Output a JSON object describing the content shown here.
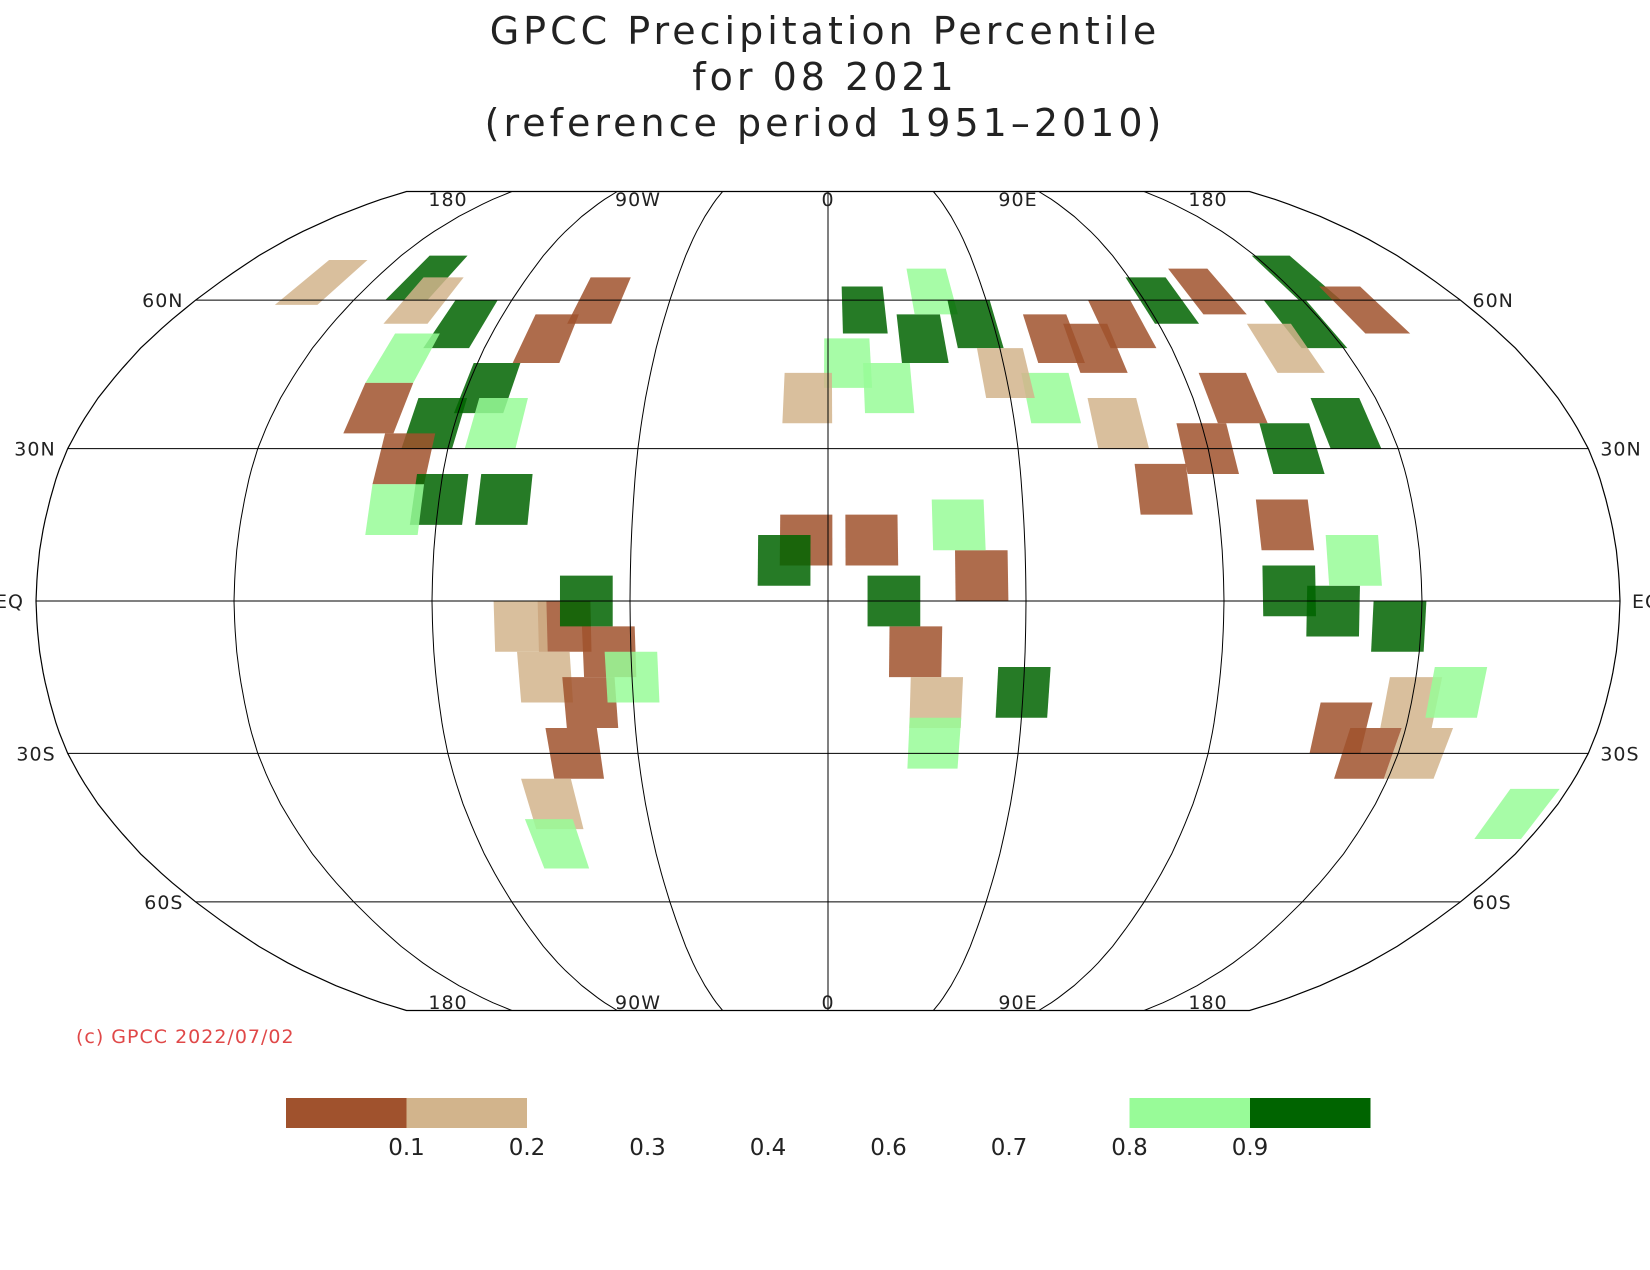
{
  "title": {
    "line1": "GPCC Precipitation Percentile",
    "line2": "for 08 2021",
    "line3": "(reference period 1951–2010)"
  },
  "copyright": "(c) GPCC 2022/07/02",
  "map": {
    "projection": "robinson",
    "central_longitude": 0,
    "longitude_labels": [
      {
        "lon": -180,
        "text": "180"
      },
      {
        "lon": -90,
        "text": "90W"
      },
      {
        "lon": 0,
        "text": "0"
      },
      {
        "lon": 90,
        "text": "90E"
      },
      {
        "lon": 180,
        "text": "180"
      }
    ],
    "latitude_labels": [
      {
        "lat": 60,
        "text": "60N"
      },
      {
        "lat": 30,
        "text": "30N"
      },
      {
        "lat": 0,
        "text": "EQ"
      },
      {
        "lat": -30,
        "text": "30S"
      },
      {
        "lat": -60,
        "text": "60S"
      }
    ],
    "categories": [
      {
        "range": "<0.1",
        "color": "#a0522d"
      },
      {
        "range": "0.1-0.2",
        "color": "#d2b48c"
      },
      {
        "range": "0.8-0.9",
        "color": "#98fb98"
      },
      {
        "range": ">0.9",
        "color": "#006400"
      }
    ],
    "regions": [
      {
        "lon": -100,
        "lat": 55,
        "cat": 3
      },
      {
        "lon": -120,
        "lat": 65,
        "cat": 3
      },
      {
        "lon": -85,
        "lat": 42,
        "cat": 3
      },
      {
        "lon": -110,
        "lat": 48,
        "cat": 2
      },
      {
        "lon": -95,
        "lat": 35,
        "cat": 3
      },
      {
        "lon": -80,
        "lat": 35,
        "cat": 2
      },
      {
        "lon": -75,
        "lat": 52,
        "cat": 0
      },
      {
        "lon": -65,
        "lat": 60,
        "cat": 0
      },
      {
        "lon": -110,
        "lat": 38,
        "cat": 0
      },
      {
        "lon": -100,
        "lat": 28,
        "cat": 0
      },
      {
        "lon": -115,
        "lat": 60,
        "cat": 1
      },
      {
        "lon": -150,
        "lat": 64,
        "cat": 1
      },
      {
        "lon": -90,
        "lat": 20,
        "cat": 3
      },
      {
        "lon": -75,
        "lat": 20,
        "cat": 3
      },
      {
        "lon": -100,
        "lat": 18,
        "cat": 2
      },
      {
        "lon": -60,
        "lat": -5,
        "cat": 0
      },
      {
        "lon": -50,
        "lat": -10,
        "cat": 0
      },
      {
        "lon": -65,
        "lat": -15,
        "cat": 1
      },
      {
        "lon": -55,
        "lat": -20,
        "cat": 0
      },
      {
        "lon": -60,
        "lat": -30,
        "cat": 0
      },
      {
        "lon": -70,
        "lat": -5,
        "cat": 1
      },
      {
        "lon": -68,
        "lat": -40,
        "cat": 1
      },
      {
        "lon": -55,
        "lat": 0,
        "cat": 3
      },
      {
        "lon": -70,
        "lat": -48,
        "cat": 2
      },
      {
        "lon": -45,
        "lat": -15,
        "cat": 2
      },
      {
        "lon": 10,
        "lat": 58,
        "cat": 3
      },
      {
        "lon": 25,
        "lat": 52,
        "cat": 3
      },
      {
        "lon": 30,
        "lat": 62,
        "cat": 2
      },
      {
        "lon": 5,
        "lat": 47,
        "cat": 2
      },
      {
        "lon": 40,
        "lat": 55,
        "cat": 3
      },
      {
        "lon": -5,
        "lat": 40,
        "cat": 1
      },
      {
        "lon": 15,
        "lat": 42,
        "cat": 2
      },
      {
        "lon": -5,
        "lat": 12,
        "cat": 0
      },
      {
        "lon": 10,
        "lat": 12,
        "cat": 0
      },
      {
        "lon": 20,
        "lat": -10,
        "cat": 0
      },
      {
        "lon": 25,
        "lat": -20,
        "cat": 1
      },
      {
        "lon": 35,
        "lat": 5,
        "cat": 0
      },
      {
        "lon": 30,
        "lat": 15,
        "cat": 2
      },
      {
        "lon": -10,
        "lat": 8,
        "cat": 3
      },
      {
        "lon": 15,
        "lat": 0,
        "cat": 3
      },
      {
        "lon": 25,
        "lat": -28,
        "cat": 2
      },
      {
        "lon": 45,
        "lat": -18,
        "cat": 3
      },
      {
        "lon": 60,
        "lat": 52,
        "cat": 0
      },
      {
        "lon": 70,
        "lat": 50,
        "cat": 0
      },
      {
        "lon": 80,
        "lat": 55,
        "cat": 0
      },
      {
        "lon": 95,
        "lat": 60,
        "cat": 3
      },
      {
        "lon": 110,
        "lat": 62,
        "cat": 0
      },
      {
        "lon": 130,
        "lat": 55,
        "cat": 3
      },
      {
        "lon": 140,
        "lat": 65,
        "cat": 3
      },
      {
        "lon": 120,
        "lat": 50,
        "cat": 1
      },
      {
        "lon": 100,
        "lat": 40,
        "cat": 0
      },
      {
        "lon": 90,
        "lat": 30,
        "cat": 0
      },
      {
        "lon": 110,
        "lat": 30,
        "cat": 3
      },
      {
        "lon": 78,
        "lat": 22,
        "cat": 0
      },
      {
        "lon": 105,
        "lat": 15,
        "cat": 0
      },
      {
        "lon": 70,
        "lat": 35,
        "cat": 1
      },
      {
        "lon": 55,
        "lat": 40,
        "cat": 2
      },
      {
        "lon": 150,
        "lat": 58,
        "cat": 0
      },
      {
        "lon": 125,
        "lat": 35,
        "cat": 3
      },
      {
        "lon": 45,
        "lat": 45,
        "cat": 1
      },
      {
        "lon": 105,
        "lat": 2,
        "cat": 3
      },
      {
        "lon": 115,
        "lat": -2,
        "cat": 3
      },
      {
        "lon": 130,
        "lat": -5,
        "cat": 3
      },
      {
        "lon": 120,
        "lat": 8,
        "cat": 2
      },
      {
        "lon": 120,
        "lat": -25,
        "cat": 0
      },
      {
        "lon": 135,
        "lat": -20,
        "cat": 1
      },
      {
        "lon": 140,
        "lat": -30,
        "cat": 1
      },
      {
        "lon": 145,
        "lat": -18,
        "cat": 2
      },
      {
        "lon": 128,
        "lat": -30,
        "cat": 0
      },
      {
        "lon": 172,
        "lat": -42,
        "cat": 2
      }
    ]
  },
  "colorbar": {
    "swatches": [
      {
        "color": "#a0522d",
        "slot": 0
      },
      {
        "color": "#d2b48c",
        "slot": 1
      },
      {
        "color": "#98fb98",
        "slot": 7
      },
      {
        "color": "#006400",
        "slot": 8
      }
    ],
    "tick_labels": [
      "0.1",
      "0.2",
      "0.3",
      "0.4",
      "0.6",
      "0.7",
      "0.8",
      "0.9"
    ]
  }
}
